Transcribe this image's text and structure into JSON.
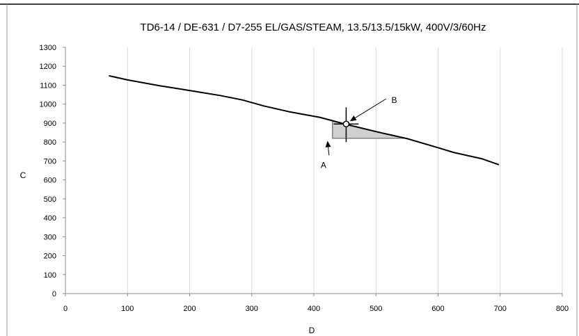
{
  "chart_data": {
    "type": "line",
    "title": "TD6-14 / DE-631 / D7-255 EL/GAS/STEAM, 13.5/13.5/15kW, 400V/3/60Hz",
    "xlabel": "D",
    "ylabel": "C",
    "xlim": [
      0,
      800
    ],
    "ylim": [
      0,
      1300
    ],
    "xticks": [
      0,
      100,
      200,
      300,
      400,
      500,
      600,
      700,
      800
    ],
    "yticks": [
      0,
      100,
      200,
      300,
      400,
      500,
      600,
      700,
      800,
      900,
      1000,
      1100,
      1200,
      1300
    ],
    "grid": "vertical",
    "series": [
      {
        "x": [
          70,
          100,
          150,
          200,
          250,
          285,
          320,
          360,
          410,
          450,
          500,
          550,
          600,
          625,
          670,
          698
        ],
        "y": [
          1150,
          1128,
          1098,
          1072,
          1045,
          1022,
          990,
          960,
          930,
          895,
          855,
          818,
          770,
          745,
          712,
          680
        ]
      }
    ],
    "shaded_region": {
      "x": [
        430,
        430,
        450,
        545
      ],
      "y": [
        820,
        910,
        895,
        820
      ]
    },
    "marker_point": {
      "x": 452,
      "y": 895
    },
    "annotations": [
      {
        "text": "A",
        "x": 420,
        "y": 700,
        "arrow_to": {
          "x": 422,
          "y": 806
        }
      },
      {
        "text": "B",
        "x": 525,
        "y": 1020,
        "arrow_to": {
          "x": 458,
          "y": 910
        }
      }
    ],
    "colors": {
      "line": "#000000",
      "shade_fill": "#d0d0d0",
      "shade_edge": "#808080",
      "grid": "#d9d9d9"
    }
  }
}
